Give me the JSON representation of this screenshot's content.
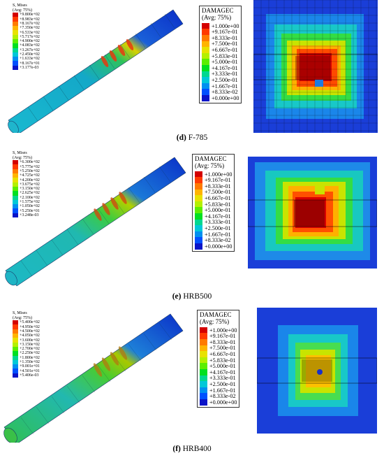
{
  "panels": [
    {
      "caption_letter": "(d)",
      "caption_text": "F-785",
      "rod_legend": {
        "title": "S, Mises",
        "subtitle": "(Avg: 75%)",
        "values": [
          "+9.800e+02",
          "+8.983e+02",
          "+8.167e+02",
          "+7.350e+02",
          "+6.533e+02",
          "+5.717e+02",
          "+4.900e+02",
          "+4.083e+02",
          "+3.267e+02",
          "+2.450e+02",
          "+1.633e+02",
          "+8.167e+01",
          "+3.177e-03"
        ]
      },
      "damage_legend": {
        "title": "DAMAGEC",
        "subtitle": "(Avg: 75%)",
        "values": [
          "+1.000e+00",
          "+9.167e-01",
          "+8.333e-01",
          "+7.500e-01",
          "+6.667e-01",
          "+5.833e-01",
          "+5.000e-01",
          "+4.167e-01",
          "+3.333e-01",
          "+2.500e-01",
          "+1.667e-01",
          "+8.333e-02",
          "+0.000e+00"
        ]
      }
    },
    {
      "caption_letter": "(e)",
      "caption_text": "HRB500",
      "rod_legend": {
        "title": "S, Mises",
        "subtitle": "(Avg: 75%)",
        "values": [
          "+6.300e+02",
          "+5.775e+02",
          "+5.250e+02",
          "+4.725e+02",
          "+4.200e+02",
          "+3.675e+02",
          "+3.150e+02",
          "+2.625e+02",
          "+2.100e+02",
          "+1.575e+02",
          "+1.050e+02",
          "+5.250e+01",
          "+3.248e-03"
        ]
      },
      "damage_legend": {
        "title": "DAMAGEC",
        "subtitle": "(Avg: 75%)",
        "values": [
          "+1.000e+00",
          "+9.167e-01",
          "+8.333e-01",
          "+7.500e-01",
          "+6.667e-01",
          "+5.833e-01",
          "+5.000e-01",
          "+4.167e-01",
          "+3.333e-01",
          "+2.500e-01",
          "+1.667e-01",
          "+8.333e-02",
          "+0.000e+00"
        ]
      }
    },
    {
      "caption_letter": "(f)",
      "caption_text": "HRB400",
      "rod_legend": {
        "title": "S, Mises",
        "subtitle": "(Avg: 75%)",
        "values": [
          "+5.400e+02",
          "+4.950e+02",
          "+4.500e+02",
          "+4.050e+02",
          "+3.600e+02",
          "+3.150e+02",
          "+2.700e+02",
          "+2.250e+02",
          "+1.800e+02",
          "+1.350e+02",
          "+9.001e+01",
          "+4.501e+01",
          "+5.406e-03"
        ]
      },
      "damage_legend": {
        "title": "DAMAGEC",
        "subtitle": "(Avg: 75%)",
        "values": [
          "+1.000e+00",
          "+9.167e-01",
          "+8.333e-01",
          "+7.500e-01",
          "+6.667e-01",
          "+5.833e-01",
          "+5.000e-01",
          "+4.167e-01",
          "+3.333e-01",
          "+2.500e-01",
          "+1.667e-01",
          "+8.333e-02",
          "+0.000e+00"
        ]
      }
    }
  ],
  "colormap": [
    "#d40000",
    "#ff3a00",
    "#ff7a00",
    "#ffb400",
    "#e8e200",
    "#b4f000",
    "#5cee00",
    "#00e020",
    "#00d890",
    "#00c8d8",
    "#0090f0",
    "#0050ff",
    "#0a14c8"
  ]
}
